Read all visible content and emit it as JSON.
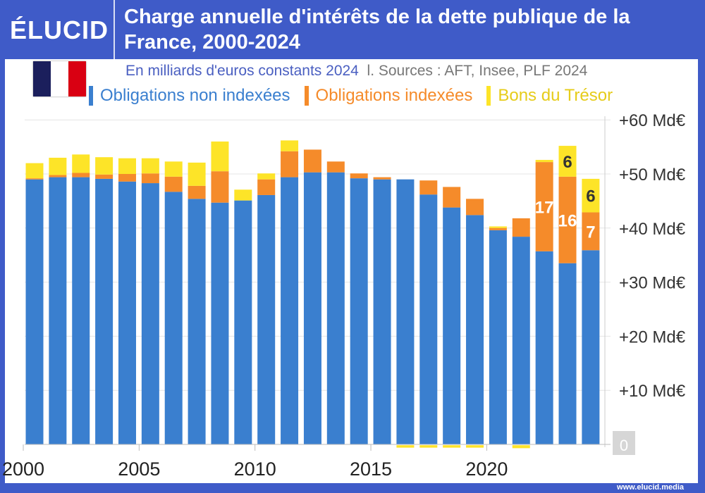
{
  "brand": {
    "logo": "ÉLUCID",
    "url": "www.elucid.media"
  },
  "header": {
    "title": "Charge annuelle d'intérêts de la dette publique de la France, 2000-2024"
  },
  "subtitle": {
    "unit": "En milliards d'euros constants 2024",
    "sources": "l. Sources : AFT, Insee, PLF 2024"
  },
  "flag": {
    "colors": [
      "#1b1f5c",
      "#ffffff",
      "#d90012"
    ]
  },
  "chart_data": {
    "type": "bar",
    "stacked": true,
    "title": "Charge annuelle d'intérêts de la dette publique de la France, 2000-2024",
    "ylabel": "En milliards d'euros constants 2024",
    "ylim": [
      0,
      60
    ],
    "yticks": [
      {
        "v": 10,
        "label": "+10 Md€"
      },
      {
        "v": 20,
        "label": "+20 Md€"
      },
      {
        "v": 30,
        "label": "+30 Md€"
      },
      {
        "v": 40,
        "label": "+40 Md€"
      },
      {
        "v": 50,
        "label": "+50 Md€"
      },
      {
        "v": 60,
        "label": "+60 Md€"
      }
    ],
    "zero_label": "0",
    "xticks": [
      "2000",
      "2005",
      "2010",
      "2015",
      "2020"
    ],
    "grid": true,
    "legend": "top",
    "categories": [
      2000,
      2001,
      2002,
      2003,
      2004,
      2005,
      2006,
      2007,
      2008,
      2009,
      2010,
      2011,
      2012,
      2013,
      2014,
      2015,
      2016,
      2017,
      2018,
      2019,
      2020,
      2021,
      2022,
      2023,
      2024
    ],
    "series": [
      {
        "name": "Obligations non indexées",
        "color": "#3a7fcf",
        "values": [
          49.0,
          49.4,
          49.4,
          49.1,
          48.6,
          48.3,
          46.7,
          45.4,
          44.7,
          45.1,
          46.1,
          49.4,
          50.3,
          50.3,
          49.2,
          49.0,
          49.0,
          46.2,
          43.8,
          42.4,
          39.6,
          38.4,
          35.7,
          33.5,
          35.9
        ]
      },
      {
        "name": "Obligations indexées",
        "color": "#f58b2a",
        "values": [
          0.2,
          0.4,
          0.8,
          0.8,
          1.4,
          1.8,
          2.8,
          2.4,
          5.8,
          0,
          2.9,
          4.8,
          4.2,
          2.0,
          0.9,
          0.4,
          0,
          2.6,
          3.8,
          3.0,
          0.4,
          3.4,
          16.5,
          16.0,
          7.0
        ]
      },
      {
        "name": "Bons du Trésor",
        "color": "#fde428",
        "values": [
          2.8,
          3.2,
          3.4,
          3.2,
          2.9,
          2.8,
          2.8,
          4.3,
          5.5,
          2.0,
          1.1,
          2.0,
          0,
          0,
          0,
          0,
          -0.5,
          -0.5,
          -0.4,
          -0.4,
          0.3,
          -0.7,
          0.4,
          5.7,
          6.2
        ]
      }
    ],
    "data_labels": [
      {
        "year": 2022,
        "series": "Obligations indexées",
        "text": "17"
      },
      {
        "year": 2023,
        "series": "Obligations indexées",
        "text": "16"
      },
      {
        "year": 2023,
        "series": "Bons du Trésor",
        "text": "6"
      },
      {
        "year": 2024,
        "series": "Obligations indexées",
        "text": "7"
      },
      {
        "year": 2024,
        "series": "Bons du Trésor",
        "text": "6"
      }
    ]
  }
}
